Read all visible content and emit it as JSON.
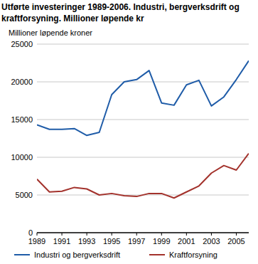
{
  "chart_data": {
    "type": "line",
    "title": "Utførte investeringer 1989-2006. Industri, bergverksdrift og kraftforsyning. Millioner løpende kr",
    "y_label": "Millioner løpende kroner",
    "x": [
      1989,
      1990,
      1991,
      1992,
      1993,
      1994,
      1995,
      1996,
      1997,
      1998,
      1999,
      2000,
      2001,
      2002,
      2003,
      2004,
      2005,
      2006
    ],
    "series": [
      {
        "name": "Industri og bergverksdrift",
        "color": "#1f5ca8",
        "values": [
          14300,
          13700,
          13700,
          13800,
          12900,
          13300,
          18300,
          20000,
          20300,
          21500,
          17200,
          16900,
          19600,
          20200,
          16800,
          18000,
          20300,
          22800
        ]
      },
      {
        "name": "Kraftforsyning",
        "color": "#a3322c",
        "values": [
          7100,
          5400,
          5500,
          6000,
          5800,
          5000,
          5200,
          4900,
          4800,
          5200,
          5200,
          4600,
          5400,
          6200,
          7900,
          8900,
          8300,
          10500
        ]
      }
    ],
    "xlim": [
      1989,
      2006
    ],
    "xticks": [
      1989,
      1991,
      1993,
      1995,
      1997,
      1999,
      2001,
      2003,
      2005
    ],
    "ylim": [
      0,
      25000
    ],
    "yticks": [
      0,
      5000,
      10000,
      15000,
      20000,
      25000
    ],
    "grid": true,
    "legend": "bottom"
  }
}
